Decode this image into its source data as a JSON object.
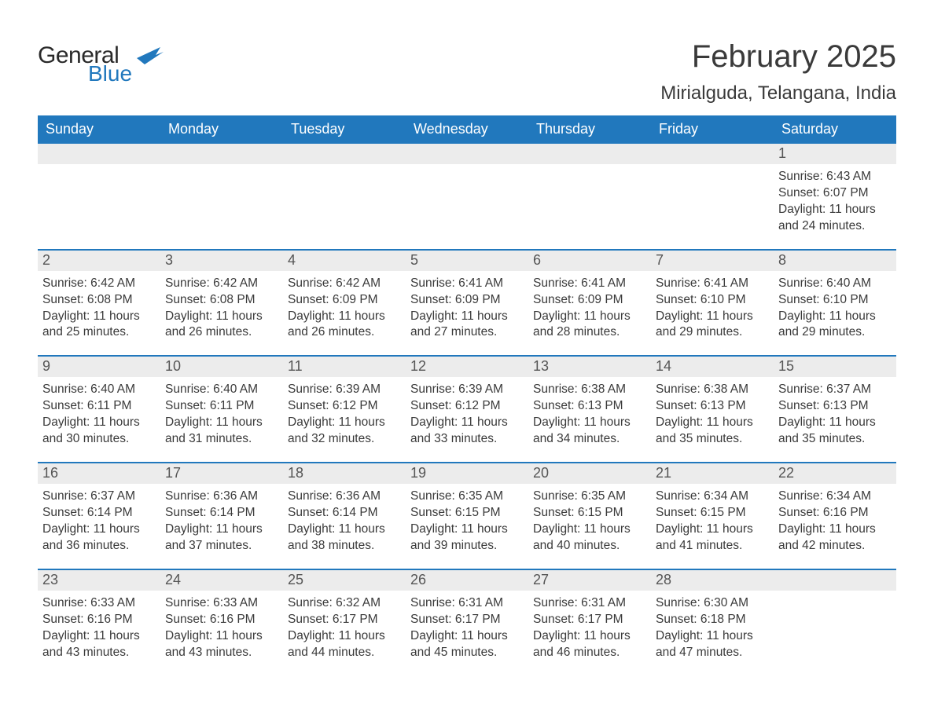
{
  "brand": {
    "text1": "General",
    "text2": "Blue",
    "flag_color": "#2178bd"
  },
  "title": "February 2025",
  "location": "Mirialguda, Telangana, India",
  "colors": {
    "header_bg": "#2178bd",
    "header_text": "#ffffff",
    "row_divider": "#2178bd",
    "daynum_bg": "#ececec",
    "body_text": "#3a3a3a",
    "background": "#ffffff"
  },
  "typography": {
    "title_fontsize": 40,
    "location_fontsize": 24,
    "dow_fontsize": 18,
    "daynum_fontsize": 18,
    "body_fontsize": 15.5,
    "font_family": "Arial"
  },
  "dow": [
    "Sunday",
    "Monday",
    "Tuesday",
    "Wednesday",
    "Thursday",
    "Friday",
    "Saturday"
  ],
  "weeks": [
    [
      null,
      null,
      null,
      null,
      null,
      null,
      {
        "n": "1",
        "sunrise": "6:43 AM",
        "sunset": "6:07 PM",
        "dl": "11 hours and 24 minutes."
      }
    ],
    [
      {
        "n": "2",
        "sunrise": "6:42 AM",
        "sunset": "6:08 PM",
        "dl": "11 hours and 25 minutes."
      },
      {
        "n": "3",
        "sunrise": "6:42 AM",
        "sunset": "6:08 PM",
        "dl": "11 hours and 26 minutes."
      },
      {
        "n": "4",
        "sunrise": "6:42 AM",
        "sunset": "6:09 PM",
        "dl": "11 hours and 26 minutes."
      },
      {
        "n": "5",
        "sunrise": "6:41 AM",
        "sunset": "6:09 PM",
        "dl": "11 hours and 27 minutes."
      },
      {
        "n": "6",
        "sunrise": "6:41 AM",
        "sunset": "6:09 PM",
        "dl": "11 hours and 28 minutes."
      },
      {
        "n": "7",
        "sunrise": "6:41 AM",
        "sunset": "6:10 PM",
        "dl": "11 hours and 29 minutes."
      },
      {
        "n": "8",
        "sunrise": "6:40 AM",
        "sunset": "6:10 PM",
        "dl": "11 hours and 29 minutes."
      }
    ],
    [
      {
        "n": "9",
        "sunrise": "6:40 AM",
        "sunset": "6:11 PM",
        "dl": "11 hours and 30 minutes."
      },
      {
        "n": "10",
        "sunrise": "6:40 AM",
        "sunset": "6:11 PM",
        "dl": "11 hours and 31 minutes."
      },
      {
        "n": "11",
        "sunrise": "6:39 AM",
        "sunset": "6:12 PM",
        "dl": "11 hours and 32 minutes."
      },
      {
        "n": "12",
        "sunrise": "6:39 AM",
        "sunset": "6:12 PM",
        "dl": "11 hours and 33 minutes."
      },
      {
        "n": "13",
        "sunrise": "6:38 AM",
        "sunset": "6:13 PM",
        "dl": "11 hours and 34 minutes."
      },
      {
        "n": "14",
        "sunrise": "6:38 AM",
        "sunset": "6:13 PM",
        "dl": "11 hours and 35 minutes."
      },
      {
        "n": "15",
        "sunrise": "6:37 AM",
        "sunset": "6:13 PM",
        "dl": "11 hours and 35 minutes."
      }
    ],
    [
      {
        "n": "16",
        "sunrise": "6:37 AM",
        "sunset": "6:14 PM",
        "dl": "11 hours and 36 minutes."
      },
      {
        "n": "17",
        "sunrise": "6:36 AM",
        "sunset": "6:14 PM",
        "dl": "11 hours and 37 minutes."
      },
      {
        "n": "18",
        "sunrise": "6:36 AM",
        "sunset": "6:14 PM",
        "dl": "11 hours and 38 minutes."
      },
      {
        "n": "19",
        "sunrise": "6:35 AM",
        "sunset": "6:15 PM",
        "dl": "11 hours and 39 minutes."
      },
      {
        "n": "20",
        "sunrise": "6:35 AM",
        "sunset": "6:15 PM",
        "dl": "11 hours and 40 minutes."
      },
      {
        "n": "21",
        "sunrise": "6:34 AM",
        "sunset": "6:15 PM",
        "dl": "11 hours and 41 minutes."
      },
      {
        "n": "22",
        "sunrise": "6:34 AM",
        "sunset": "6:16 PM",
        "dl": "11 hours and 42 minutes."
      }
    ],
    [
      {
        "n": "23",
        "sunrise": "6:33 AM",
        "sunset": "6:16 PM",
        "dl": "11 hours and 43 minutes."
      },
      {
        "n": "24",
        "sunrise": "6:33 AM",
        "sunset": "6:16 PM",
        "dl": "11 hours and 43 minutes."
      },
      {
        "n": "25",
        "sunrise": "6:32 AM",
        "sunset": "6:17 PM",
        "dl": "11 hours and 44 minutes."
      },
      {
        "n": "26",
        "sunrise": "6:31 AM",
        "sunset": "6:17 PM",
        "dl": "11 hours and 45 minutes."
      },
      {
        "n": "27",
        "sunrise": "6:31 AM",
        "sunset": "6:17 PM",
        "dl": "11 hours and 46 minutes."
      },
      {
        "n": "28",
        "sunrise": "6:30 AM",
        "sunset": "6:18 PM",
        "dl": "11 hours and 47 minutes."
      },
      null
    ]
  ],
  "labels": {
    "sunrise": "Sunrise: ",
    "sunset": "Sunset: ",
    "daylight": "Daylight: "
  }
}
